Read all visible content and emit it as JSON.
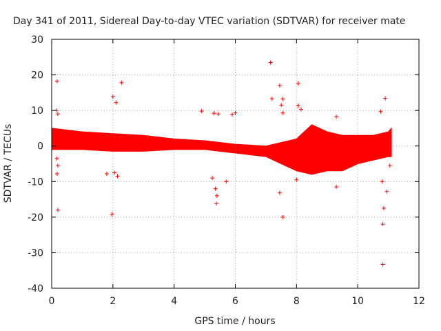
{
  "chart_data": {
    "type": "scatter",
    "title": "Day 341 of 2011, Sidereal Day-to-day VTEC variation (SDTVAR) for receiver mate",
    "xlabel": "GPS time / hours",
    "ylabel": "SDTVAR / TECUs",
    "xlim": [
      0,
      12
    ],
    "ylim": [
      -40,
      30
    ],
    "x_ticks": [
      0,
      2,
      4,
      6,
      8,
      10,
      12
    ],
    "y_ticks": [
      -40,
      -30,
      -20,
      -10,
      0,
      10,
      20,
      30
    ],
    "x_tick_labels": [
      "0",
      "2",
      "4",
      "6",
      "8",
      "10",
      "12"
    ],
    "y_tick_labels": [
      "-40",
      "-30",
      "-20",
      "-10",
      "0",
      "10",
      "20",
      "30"
    ],
    "grid": true,
    "marker": "+",
    "color": "#ff0000",
    "data_extent_hours": [
      0,
      11.1
    ],
    "band_envelope": {
      "description": "dense cloud of points; approximate upper and lower envelope in TECU",
      "x": [
        0,
        1,
        2,
        3,
        4,
        5,
        6,
        7,
        7.5,
        8,
        8.5,
        9,
        9.5,
        10,
        10.5,
        11,
        11.1
      ],
      "upper": [
        5,
        4,
        3.5,
        3,
        2,
        1.5,
        0.5,
        0,
        1,
        2,
        6,
        4,
        3,
        3,
        3,
        4,
        5
      ],
      "lower": [
        -1,
        -1,
        -1.5,
        -1.5,
        -1,
        -1,
        -2,
        -3,
        -5,
        -7,
        -8,
        -7,
        -7,
        -5,
        -4,
        -3,
        -3
      ]
    },
    "outliers": [
      {
        "x": 0.18,
        "y": 18.2
      },
      {
        "x": 0.15,
        "y": 10
      },
      {
        "x": 0.2,
        "y": 9
      },
      {
        "x": 0.17,
        "y": -3.5
      },
      {
        "x": 0.2,
        "y": -5.5
      },
      {
        "x": 0.18,
        "y": -7.8
      },
      {
        "x": 0.2,
        "y": -18
      },
      {
        "x": 1.97,
        "y": -19.2
      },
      {
        "x": 2.0,
        "y": 13.8
      },
      {
        "x": 2.1,
        "y": 12.2
      },
      {
        "x": 2.28,
        "y": 17.8
      },
      {
        "x": 2.05,
        "y": -7.5
      },
      {
        "x": 2.15,
        "y": -8.5
      },
      {
        "x": 1.8,
        "y": -7.8
      },
      {
        "x": 4.9,
        "y": 9.8
      },
      {
        "x": 5.3,
        "y": 9.2
      },
      {
        "x": 5.45,
        "y": 9.0
      },
      {
        "x": 5.35,
        "y": -12
      },
      {
        "x": 5.4,
        "y": -14
      },
      {
        "x": 5.38,
        "y": -16.2
      },
      {
        "x": 5.25,
        "y": -9
      },
      {
        "x": 5.7,
        "y": -10
      },
      {
        "x": 5.9,
        "y": 8.8
      },
      {
        "x": 6.0,
        "y": 9.3
      },
      {
        "x": 7.15,
        "y": 23.5
      },
      {
        "x": 7.2,
        "y": 13.3
      },
      {
        "x": 7.45,
        "y": 17
      },
      {
        "x": 7.55,
        "y": 13.2
      },
      {
        "x": 7.5,
        "y": 11.5
      },
      {
        "x": 7.55,
        "y": 9.3
      },
      {
        "x": 7.45,
        "y": -13.2
      },
      {
        "x": 7.55,
        "y": -20
      },
      {
        "x": 8.05,
        "y": 17.6
      },
      {
        "x": 8.05,
        "y": 11.3
      },
      {
        "x": 8.15,
        "y": 10.3
      },
      {
        "x": 8.0,
        "y": -9.5
      },
      {
        "x": 9.3,
        "y": 8.2
      },
      {
        "x": 9.3,
        "y": -11.5
      },
      {
        "x": 10.75,
        "y": 9.7
      },
      {
        "x": 10.9,
        "y": 13.4
      },
      {
        "x": 10.85,
        "y": -17.5
      },
      {
        "x": 10.82,
        "y": -22
      },
      {
        "x": 10.82,
        "y": -33.3
      },
      {
        "x": 10.95,
        "y": -12.8
      },
      {
        "x": 10.8,
        "y": -10
      },
      {
        "x": 11.05,
        "y": -5.5
      }
    ]
  }
}
